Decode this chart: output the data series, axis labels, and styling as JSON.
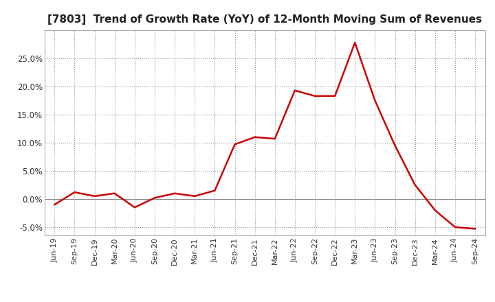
{
  "title": "[7803]  Trend of Growth Rate (YoY) of 12-Month Moving Sum of Revenues",
  "title_fontsize": 11,
  "line_color": "#cc0000",
  "background_color": "#ffffff",
  "grid_color": "#999999",
  "x_labels": [
    "Jun-19",
    "Sep-19",
    "Dec-19",
    "Mar-20",
    "Jun-20",
    "Sep-20",
    "Dec-20",
    "Mar-21",
    "Jun-21",
    "Sep-21",
    "Dec-21",
    "Mar-22",
    "Jun-22",
    "Sep-22",
    "Dec-22",
    "Mar-23",
    "Jun-23",
    "Sep-23",
    "Dec-23",
    "Mar-24",
    "Jun-24",
    "Sep-24"
  ],
  "y_values": [
    -1.0,
    1.2,
    0.5,
    1.0,
    -1.5,
    0.2,
    1.0,
    0.5,
    1.5,
    9.7,
    11.0,
    10.7,
    19.3,
    18.3,
    18.3,
    27.8,
    17.5,
    9.5,
    2.5,
    -2.0,
    -5.0,
    -5.3
  ],
  "ylim": [
    -6.5,
    30.0
  ],
  "yticks": [
    -5.0,
    0.0,
    5.0,
    10.0,
    15.0,
    20.0,
    25.0
  ],
  "line_width": 1.8
}
